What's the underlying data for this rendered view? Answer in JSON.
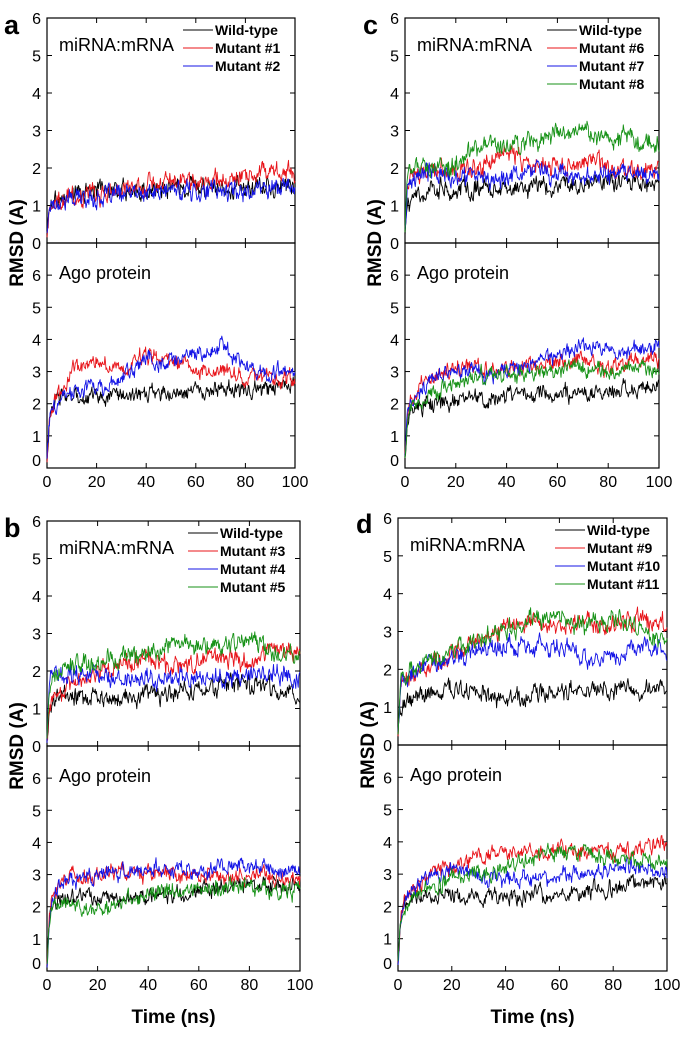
{
  "colors": {
    "Wild-type": "#000000",
    "red": "#e8141a",
    "blue": "#1414e6",
    "green": "#179217"
  },
  "chart_data": [
    {
      "panel": "a",
      "type": "line",
      "xlabel": "",
      "ylabel": "RMSD (A)",
      "xlim": [
        0,
        100
      ],
      "xticks": [
        "0",
        "20",
        "40",
        "60",
        "80",
        "100"
      ],
      "subplots": [
        {
          "label": "miRNA:mRNA",
          "ylim": [
            0,
            6
          ],
          "yticks": [
            "0",
            "1",
            "2",
            "3",
            "4",
            "5",
            "6"
          ],
          "legend": "top-right",
          "x": [
            0,
            1,
            2,
            5,
            10,
            20,
            30,
            40,
            50,
            60,
            70,
            80,
            90,
            100
          ],
          "series": [
            {
              "name": "Wild-type",
              "color": "black",
              "values": [
                0.2,
                1.0,
                1.1,
                1.2,
                1.3,
                1.4,
                1.4,
                1.4,
                1.5,
                1.5,
                1.5,
                1.5,
                1.5,
                1.5
              ]
            },
            {
              "name": "Mutant #1",
              "color": "red",
              "values": [
                0.3,
                1.0,
                1.1,
                1.2,
                1.2,
                1.3,
                1.4,
                1.6,
                1.7,
                1.6,
                1.7,
                1.8,
                1.9,
                1.8
              ]
            },
            {
              "name": "Mutant #2",
              "color": "blue",
              "values": [
                0.3,
                1.0,
                1.1,
                1.1,
                1.2,
                1.2,
                1.3,
                1.3,
                1.4,
                1.4,
                1.4,
                1.4,
                1.5,
                1.5
              ]
            }
          ]
        },
        {
          "label": "Ago protein",
          "ylim": [
            0,
            7
          ],
          "yticks": [
            "0",
            "1",
            "2",
            "3",
            "4",
            "5",
            "6"
          ],
          "x": [
            0,
            1,
            2,
            5,
            10,
            20,
            30,
            40,
            50,
            60,
            70,
            80,
            90,
            100
          ],
          "series": [
            {
              "name": "Wild-type",
              "color": "black",
              "values": [
                0.3,
                1.5,
                1.9,
                2.1,
                2.2,
                2.2,
                2.3,
                2.3,
                2.3,
                2.4,
                2.4,
                2.4,
                2.5,
                2.6
              ]
            },
            {
              "name": "Mutant #1",
              "color": "red",
              "values": [
                0.3,
                1.5,
                1.9,
                2.3,
                3.0,
                3.4,
                3.0,
                3.5,
                3.4,
                3.0,
                3.1,
                2.8,
                2.8,
                2.8
              ]
            },
            {
              "name": "Mutant #2",
              "color": "blue",
              "values": [
                0.3,
                1.5,
                1.8,
                2.1,
                2.4,
                2.5,
                2.7,
                3.4,
                3.3,
                3.5,
                3.8,
                3.2,
                3.0,
                3.0
              ]
            }
          ]
        }
      ]
    },
    {
      "panel": "c",
      "type": "line",
      "xlabel": "",
      "ylabel": "RMSD (A)",
      "xlim": [
        0,
        100
      ],
      "xticks": [
        "0",
        "20",
        "40",
        "60",
        "80",
        "100"
      ],
      "subplots": [
        {
          "label": "miRNA:mRNA",
          "ylim": [
            0,
            6
          ],
          "yticks": [
            "0",
            "1",
            "2",
            "3",
            "4",
            "5",
            "6"
          ],
          "legend": "top-right",
          "x": [
            0,
            1,
            2,
            5,
            10,
            20,
            30,
            40,
            50,
            60,
            70,
            80,
            90,
            100
          ],
          "series": [
            {
              "name": "Wild-type",
              "color": "black",
              "values": [
                0.2,
                0.9,
                1.1,
                1.3,
                1.4,
                1.4,
                1.5,
                1.4,
                1.5,
                1.5,
                1.6,
                1.6,
                1.6,
                1.5
              ]
            },
            {
              "name": "Mutant #6",
              "color": "red",
              "values": [
                0.3,
                1.6,
                1.8,
                1.9,
                2.0,
                2.0,
                2.0,
                2.5,
                2.0,
                2.1,
                2.2,
                2.0,
                2.0,
                2.0
              ]
            },
            {
              "name": "Mutant #7",
              "color": "blue",
              "values": [
                0.3,
                1.6,
                1.8,
                1.8,
                1.9,
                1.8,
                1.7,
                1.8,
                2.0,
                1.8,
                1.7,
                1.8,
                1.8,
                1.8
              ]
            },
            {
              "name": "Mutant #8",
              "color": "green",
              "values": [
                0.3,
                1.7,
                1.9,
                2.0,
                2.0,
                2.1,
                2.7,
                2.6,
                2.7,
                2.9,
                3.0,
                2.8,
                2.8,
                2.6
              ]
            }
          ]
        },
        {
          "label": "Ago protein",
          "ylim": [
            0,
            7
          ],
          "yticks": [
            "0",
            "1",
            "2",
            "3",
            "4",
            "5",
            "6"
          ],
          "x": [
            0,
            1,
            2,
            5,
            10,
            20,
            30,
            40,
            50,
            60,
            70,
            80,
            90,
            100
          ],
          "series": [
            {
              "name": "Wild-type",
              "color": "black",
              "values": [
                0.3,
                1.4,
                1.7,
                1.9,
                2.0,
                2.1,
                2.2,
                2.2,
                2.3,
                2.3,
                2.3,
                2.4,
                2.5,
                2.6
              ]
            },
            {
              "name": "Mutant #6",
              "color": "red",
              "values": [
                0.3,
                1.6,
                2.0,
                2.4,
                2.7,
                3.1,
                3.2,
                3.0,
                3.2,
                3.3,
                3.4,
                3.1,
                3.3,
                3.4
              ]
            },
            {
              "name": "Mutant #7",
              "color": "blue",
              "values": [
                0.3,
                1.6,
                2.0,
                2.3,
                2.7,
                3.1,
                3.0,
                3.0,
                3.3,
                3.5,
                3.8,
                3.6,
                3.6,
                3.9
              ]
            },
            {
              "name": "Mutant #8",
              "color": "green",
              "values": [
                0.3,
                1.4,
                1.7,
                2.0,
                2.3,
                2.6,
                2.9,
                2.9,
                3.0,
                3.0,
                3.1,
                3.0,
                3.1,
                3.1
              ]
            }
          ]
        }
      ]
    },
    {
      "panel": "b",
      "type": "line",
      "xlabel": "Time (ns)",
      "ylabel": "RMSD (A)",
      "xlim": [
        0,
        100
      ],
      "xticks": [
        "0",
        "20",
        "40",
        "60",
        "80",
        "100"
      ],
      "subplots": [
        {
          "label": "miRNA:mRNA",
          "ylim": [
            0,
            6
          ],
          "yticks": [
            "0",
            "1",
            "2",
            "3",
            "4",
            "5",
            "6"
          ],
          "legend": "top-right",
          "x": [
            0,
            1,
            2,
            5,
            10,
            20,
            30,
            40,
            50,
            60,
            70,
            80,
            90,
            100
          ],
          "series": [
            {
              "name": "Wild-type",
              "color": "black",
              "values": [
                0.2,
                1.0,
                1.1,
                1.3,
                1.3,
                1.3,
                1.3,
                1.4,
                1.4,
                1.5,
                1.6,
                1.6,
                1.5,
                1.4
              ]
            },
            {
              "name": "Mutant #3",
              "color": "red",
              "values": [
                0.3,
                1.1,
                1.2,
                1.4,
                1.7,
                2.0,
                2.2,
                2.4,
                2.1,
                2.2,
                2.4,
                2.2,
                2.6,
                2.5
              ]
            },
            {
              "name": "Mutant #4",
              "color": "blue",
              "values": [
                0.3,
                1.6,
                1.8,
                2.0,
                2.0,
                1.9,
                1.8,
                1.8,
                1.9,
                1.8,
                1.8,
                1.9,
                1.9,
                1.9
              ]
            },
            {
              "name": "Mutant #5",
              "color": "green",
              "values": [
                0.3,
                1.5,
                1.8,
                2.0,
                2.2,
                2.2,
                2.3,
                2.5,
                2.8,
                2.6,
                2.7,
                2.9,
                2.4,
                2.4
              ]
            }
          ]
        },
        {
          "label": "Ago protein",
          "ylim": [
            0,
            7
          ],
          "yticks": [
            "0",
            "1",
            "2",
            "3",
            "4",
            "5",
            "6"
          ],
          "x": [
            0,
            1,
            2,
            5,
            10,
            20,
            30,
            40,
            50,
            60,
            70,
            80,
            90,
            100
          ],
          "series": [
            {
              "name": "Wild-type",
              "color": "black",
              "values": [
                0.3,
                1.5,
                1.9,
                2.2,
                2.3,
                2.3,
                2.3,
                2.3,
                2.4,
                2.5,
                2.6,
                2.7,
                2.7,
                2.6
              ]
            },
            {
              "name": "Mutant #3",
              "color": "red",
              "values": [
                0.3,
                1.6,
                2.2,
                2.6,
                3.0,
                3.0,
                3.1,
                3.0,
                3.0,
                2.9,
                2.9,
                3.0,
                2.9,
                2.8
              ]
            },
            {
              "name": "Mutant #4",
              "color": "blue",
              "values": [
                0.3,
                1.6,
                2.1,
                2.6,
                2.9,
                3.0,
                3.1,
                3.2,
                3.2,
                3.0,
                3.2,
                3.3,
                3.1,
                3.1
              ]
            },
            {
              "name": "Mutant #5",
              "color": "green",
              "values": [
                0.3,
                1.5,
                2.0,
                2.1,
                2.0,
                1.9,
                2.2,
                2.4,
                2.5,
                2.5,
                2.6,
                2.6,
                2.5,
                2.5
              ]
            }
          ]
        }
      ]
    },
    {
      "panel": "d",
      "type": "line",
      "xlabel": "Time (ns)",
      "ylabel": "RMSD (A)",
      "xlim": [
        0,
        100
      ],
      "xticks": [
        "0",
        "20",
        "40",
        "60",
        "80",
        "100"
      ],
      "subplots": [
        {
          "label": "miRNA:mRNA",
          "ylim": [
            0,
            6
          ],
          "yticks": [
            "0",
            "1",
            "2",
            "3",
            "4",
            "5",
            "6"
          ],
          "legend": "top-right",
          "x": [
            0,
            1,
            2,
            5,
            10,
            20,
            30,
            40,
            50,
            60,
            70,
            80,
            90,
            100
          ],
          "series": [
            {
              "name": "Wild-type",
              "color": "black",
              "values": [
                0.2,
                0.9,
                1.1,
                1.2,
                1.3,
                1.5,
                1.4,
                1.3,
                1.3,
                1.4,
                1.5,
                1.4,
                1.4,
                1.4
              ]
            },
            {
              "name": "Mutant #9",
              "color": "red",
              "values": [
                0.3,
                1.5,
                1.7,
                1.8,
                2.0,
                2.4,
                2.7,
                3.1,
                3.2,
                3.1,
                3.2,
                3.2,
                3.3,
                3.2
              ]
            },
            {
              "name": "Mutant #10",
              "color": "blue",
              "values": [
                0.3,
                1.5,
                1.7,
                1.8,
                2.0,
                2.3,
                2.5,
                2.6,
                2.6,
                2.6,
                2.3,
                2.4,
                2.6,
                2.5
              ]
            },
            {
              "name": "Mutant #11",
              "color": "green",
              "values": [
                0.3,
                1.6,
                1.8,
                2.0,
                2.1,
                2.5,
                2.8,
                3.0,
                3.4,
                3.3,
                3.2,
                3.3,
                3.1,
                2.5
              ]
            }
          ]
        },
        {
          "label": "Ago protein",
          "ylim": [
            0,
            7
          ],
          "yticks": [
            "0",
            "1",
            "2",
            "3",
            "4",
            "5",
            "6"
          ],
          "x": [
            0,
            1,
            2,
            5,
            10,
            20,
            30,
            40,
            50,
            60,
            70,
            80,
            90,
            100
          ],
          "series": [
            {
              "name": "Wild-type",
              "color": "black",
              "values": [
                0.3,
                1.5,
                1.9,
                2.2,
                2.3,
                2.3,
                2.3,
                2.3,
                2.4,
                2.4,
                2.5,
                2.6,
                2.7,
                2.7
              ]
            },
            {
              "name": "Mutant #9",
              "color": "red",
              "values": [
                0.3,
                1.6,
                2.1,
                2.5,
                2.8,
                3.2,
                3.6,
                3.7,
                3.6,
                3.8,
                3.7,
                3.6,
                3.8,
                4.0
              ]
            },
            {
              "name": "Mutant #10",
              "color": "blue",
              "values": [
                0.3,
                1.6,
                2.1,
                2.5,
                2.9,
                3.1,
                3.0,
                2.8,
                2.9,
                3.0,
                3.0,
                3.2,
                3.2,
                3.1
              ]
            },
            {
              "name": "Mutant #11",
              "color": "green",
              "values": [
                0.3,
                1.5,
                1.9,
                2.2,
                2.5,
                2.9,
                3.0,
                3.2,
                3.5,
                3.7,
                3.6,
                3.5,
                3.5,
                3.4
              ]
            }
          ]
        }
      ]
    }
  ]
}
